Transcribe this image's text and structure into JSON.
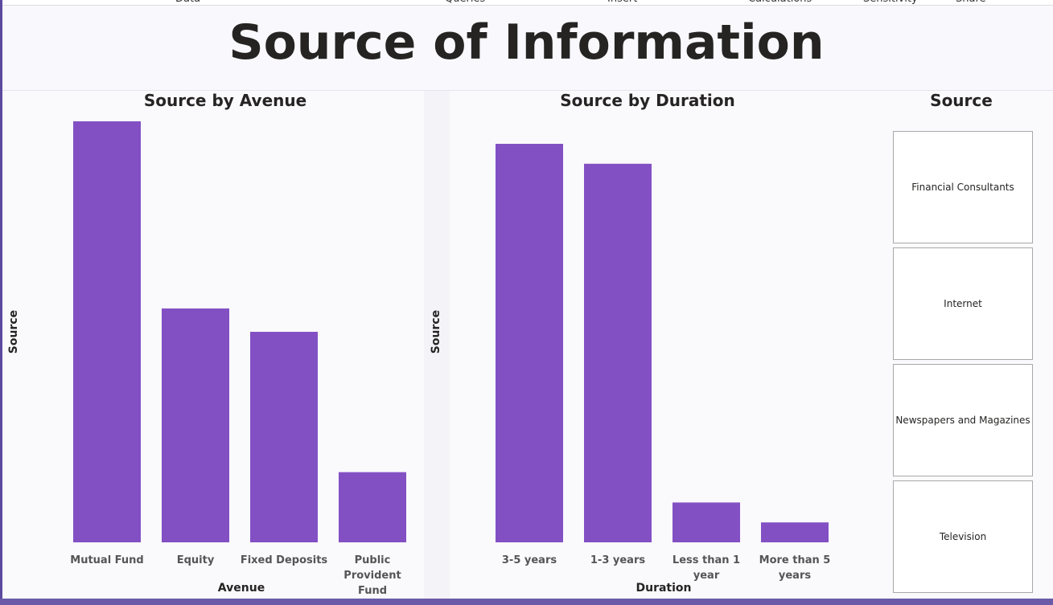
{
  "toolbar": [
    "Data",
    "Queries",
    "Insert",
    "Calculations",
    "Sensitivity",
    "Share"
  ],
  "title": "Source of Information",
  "chart_data": [
    {
      "type": "bar",
      "title": "Source by Avenue",
      "x_label": "Avenue",
      "y_label": "Source",
      "categories": [
        "Mutual Fund",
        "Equity",
        "Fixed Deposits",
        "Public Provident Fund"
      ],
      "values": [
        18,
        10,
        9,
        3
      ],
      "color": "#8350c4"
    },
    {
      "type": "bar",
      "title": "Source by Duration",
      "x_label": "Duration",
      "y_label": "Source",
      "categories": [
        "3-5 years",
        "1-3 years",
        "Less than 1 year",
        "More than 5 years"
      ],
      "values": [
        20,
        19,
        2,
        1
      ],
      "color": "#8350c4"
    }
  ],
  "slicer": {
    "title": "Source",
    "items": [
      "Financial Consultants",
      "Internet",
      "Newspapers and Magazines",
      "Television"
    ]
  }
}
